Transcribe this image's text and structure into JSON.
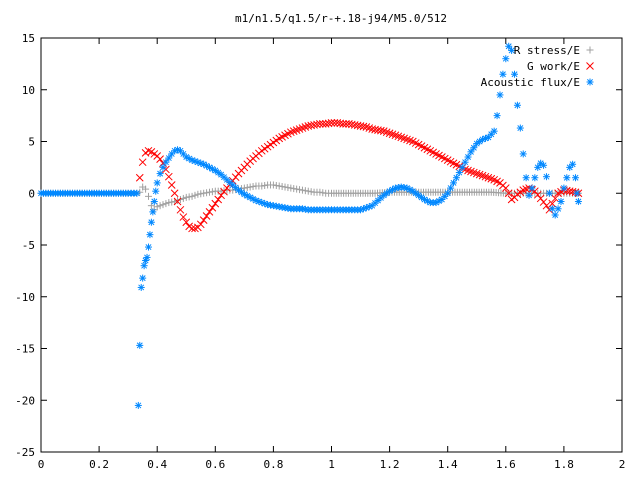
{
  "chart_data": {
    "type": "scatter",
    "title": "m1/n1.5/q1.5/r-+.18-j94/M5.0/512",
    "xlabel": "",
    "ylabel": "",
    "xlim": [
      0,
      2
    ],
    "ylim": [
      -25,
      15
    ],
    "x_ticks": [
      "0",
      "0.2",
      "0.4",
      "0.6",
      "0.8",
      "1",
      "1.2",
      "1.4",
      "1.6",
      "1.8",
      "2"
    ],
    "y_ticks": [
      "15",
      "10",
      "5",
      "0",
      "-5",
      "-10",
      "-15",
      "-20",
      "-25"
    ],
    "grid": false,
    "legend_position": "top-right",
    "series": [
      {
        "name": "R stress/E",
        "marker": "+",
        "color": "#a0a0a0",
        "points": [
          [
            0.0,
            0
          ],
          [
            0.05,
            0
          ],
          [
            0.1,
            0
          ],
          [
            0.15,
            0
          ],
          [
            0.2,
            0
          ],
          [
            0.25,
            0
          ],
          [
            0.3,
            0
          ],
          [
            0.33,
            0
          ],
          [
            0.34,
            0.1
          ],
          [
            0.35,
            0.6
          ],
          [
            0.36,
            0.4
          ],
          [
            0.37,
            -0.3
          ],
          [
            0.38,
            -1.2
          ],
          [
            0.39,
            -1.6
          ],
          [
            0.4,
            -1.3
          ],
          [
            0.42,
            -1.1
          ],
          [
            0.44,
            -0.9
          ],
          [
            0.46,
            -0.8
          ],
          [
            0.48,
            -0.6
          ],
          [
            0.5,
            -0.4
          ],
          [
            0.52,
            -0.3
          ],
          [
            0.54,
            -0.1
          ],
          [
            0.56,
            0.0
          ],
          [
            0.58,
            0.1
          ],
          [
            0.6,
            0.2
          ],
          [
            0.62,
            0.2
          ],
          [
            0.64,
            0.3
          ],
          [
            0.66,
            0.3
          ],
          [
            0.68,
            0.4
          ],
          [
            0.7,
            0.5
          ],
          [
            0.72,
            0.6
          ],
          [
            0.74,
            0.7
          ],
          [
            0.76,
            0.7
          ],
          [
            0.78,
            0.8
          ],
          [
            0.8,
            0.8
          ],
          [
            0.82,
            0.7
          ],
          [
            0.84,
            0.6
          ],
          [
            0.86,
            0.5
          ],
          [
            0.88,
            0.4
          ],
          [
            0.9,
            0.3
          ],
          [
            0.92,
            0.2
          ],
          [
            0.94,
            0.1
          ],
          [
            0.96,
            0.1
          ],
          [
            0.98,
            0.0
          ],
          [
            1.0,
            0.0
          ],
          [
            1.05,
            0.0
          ],
          [
            1.1,
            0.0
          ],
          [
            1.15,
            0.0
          ],
          [
            1.2,
            0.1
          ],
          [
            1.25,
            0.1
          ],
          [
            1.3,
            0.1
          ],
          [
            1.35,
            0.1
          ],
          [
            1.4,
            0.1
          ],
          [
            1.45,
            0.1
          ],
          [
            1.5,
            0.1
          ],
          [
            1.55,
            0.1
          ],
          [
            1.6,
            0.0
          ],
          [
            1.62,
            0.0
          ],
          [
            1.64,
            0.0
          ],
          [
            1.66,
            0.0
          ],
          [
            1.68,
            0.0
          ],
          [
            1.7,
            0.0
          ],
          [
            1.72,
            0.0
          ],
          [
            1.74,
            0.0
          ],
          [
            1.76,
            0.0
          ],
          [
            1.78,
            0.0
          ],
          [
            1.8,
            0.0
          ],
          [
            1.82,
            0.0
          ],
          [
            1.84,
            0.0
          ],
          [
            1.85,
            0.0
          ]
        ]
      },
      {
        "name": "G work/E",
        "marker": "x",
        "color": "#ff0000",
        "points": [
          [
            0.34,
            1.5
          ],
          [
            0.35,
            3.0
          ],
          [
            0.36,
            3.9
          ],
          [
            0.37,
            4.1
          ],
          [
            0.38,
            4.0
          ],
          [
            0.39,
            3.8
          ],
          [
            0.4,
            3.6
          ],
          [
            0.41,
            3.3
          ],
          [
            0.42,
            2.9
          ],
          [
            0.43,
            2.3
          ],
          [
            0.44,
            1.6
          ],
          [
            0.45,
            0.8
          ],
          [
            0.46,
            0.0
          ],
          [
            0.47,
            -0.8
          ],
          [
            0.48,
            -1.6
          ],
          [
            0.49,
            -2.3
          ],
          [
            0.5,
            -2.8
          ],
          [
            0.51,
            -3.2
          ],
          [
            0.52,
            -3.4
          ],
          [
            0.53,
            -3.4
          ],
          [
            0.54,
            -3.3
          ],
          [
            0.55,
            -3.0
          ],
          [
            0.56,
            -2.6
          ],
          [
            0.58,
            -1.8
          ],
          [
            0.6,
            -1.0
          ],
          [
            0.62,
            -0.2
          ],
          [
            0.64,
            0.5
          ],
          [
            0.66,
            1.2
          ],
          [
            0.68,
            1.9
          ],
          [
            0.7,
            2.5
          ],
          [
            0.72,
            3.1
          ],
          [
            0.74,
            3.6
          ],
          [
            0.76,
            4.1
          ],
          [
            0.78,
            4.5
          ],
          [
            0.8,
            4.9
          ],
          [
            0.82,
            5.3
          ],
          [
            0.84,
            5.6
          ],
          [
            0.86,
            5.9
          ],
          [
            0.88,
            6.1
          ],
          [
            0.9,
            6.3
          ],
          [
            0.92,
            6.5
          ],
          [
            0.94,
            6.6
          ],
          [
            0.96,
            6.7
          ],
          [
            0.98,
            6.7
          ],
          [
            1.0,
            6.8
          ],
          [
            1.02,
            6.8
          ],
          [
            1.04,
            6.7
          ],
          [
            1.06,
            6.7
          ],
          [
            1.08,
            6.6
          ],
          [
            1.1,
            6.5
          ],
          [
            1.12,
            6.4
          ],
          [
            1.14,
            6.2
          ],
          [
            1.16,
            6.1
          ],
          [
            1.18,
            6.0
          ],
          [
            1.2,
            5.8
          ],
          [
            1.22,
            5.6
          ],
          [
            1.24,
            5.4
          ],
          [
            1.26,
            5.2
          ],
          [
            1.28,
            5.0
          ],
          [
            1.3,
            4.7
          ],
          [
            1.32,
            4.4
          ],
          [
            1.34,
            4.1
          ],
          [
            1.36,
            3.8
          ],
          [
            1.38,
            3.5
          ],
          [
            1.4,
            3.2
          ],
          [
            1.42,
            2.9
          ],
          [
            1.44,
            2.6
          ],
          [
            1.46,
            2.3
          ],
          [
            1.48,
            2.1
          ],
          [
            1.5,
            1.9
          ],
          [
            1.52,
            1.7
          ],
          [
            1.54,
            1.5
          ],
          [
            1.56,
            1.3
          ],
          [
            1.58,
            1.0
          ],
          [
            1.6,
            0.5
          ],
          [
            1.61,
            0.0
          ],
          [
            1.62,
            -0.6
          ],
          [
            1.63,
            -0.4
          ],
          [
            1.64,
            -0.1
          ],
          [
            1.66,
            0.3
          ],
          [
            1.68,
            0.5
          ],
          [
            1.7,
            0.2
          ],
          [
            1.72,
            -0.5
          ],
          [
            1.74,
            -1.2
          ],
          [
            1.75,
            -1.6
          ],
          [
            1.76,
            -1.0
          ],
          [
            1.78,
            0.0
          ],
          [
            1.8,
            0.3
          ],
          [
            1.82,
            0.2
          ],
          [
            1.84,
            0.1
          ],
          [
            1.85,
            0.0
          ]
        ]
      },
      {
        "name": "Acoustic flux/E",
        "marker": "*",
        "color": "#0088ff",
        "points": [
          [
            0.0,
            0
          ],
          [
            0.05,
            0
          ],
          [
            0.1,
            0
          ],
          [
            0.15,
            0
          ],
          [
            0.2,
            0
          ],
          [
            0.25,
            0
          ],
          [
            0.3,
            0
          ],
          [
            0.33,
            0
          ],
          [
            0.335,
            -20.5
          ],
          [
            0.34,
            -14.7
          ],
          [
            0.345,
            -9.1
          ],
          [
            0.35,
            -8.2
          ],
          [
            0.355,
            -7.0
          ],
          [
            0.36,
            -6.5
          ],
          [
            0.365,
            -6.2
          ],
          [
            0.37,
            -5.2
          ],
          [
            0.375,
            -4.0
          ],
          [
            0.38,
            -2.8
          ],
          [
            0.385,
            -1.8
          ],
          [
            0.39,
            -0.8
          ],
          [
            0.395,
            0.2
          ],
          [
            0.4,
            1.0
          ],
          [
            0.41,
            1.9
          ],
          [
            0.42,
            2.5
          ],
          [
            0.43,
            3.0
          ],
          [
            0.44,
            3.4
          ],
          [
            0.45,
            3.8
          ],
          [
            0.46,
            4.1
          ],
          [
            0.47,
            4.2
          ],
          [
            0.48,
            4.1
          ],
          [
            0.49,
            3.8
          ],
          [
            0.5,
            3.5
          ],
          [
            0.52,
            3.2
          ],
          [
            0.54,
            3.0
          ],
          [
            0.56,
            2.8
          ],
          [
            0.58,
            2.5
          ],
          [
            0.6,
            2.2
          ],
          [
            0.62,
            1.8
          ],
          [
            0.64,
            1.3
          ],
          [
            0.66,
            0.8
          ],
          [
            0.68,
            0.3
          ],
          [
            0.7,
            -0.1
          ],
          [
            0.72,
            -0.4
          ],
          [
            0.74,
            -0.7
          ],
          [
            0.76,
            -0.9
          ],
          [
            0.78,
            -1.1
          ],
          [
            0.8,
            -1.2
          ],
          [
            0.82,
            -1.3
          ],
          [
            0.84,
            -1.4
          ],
          [
            0.86,
            -1.5
          ],
          [
            0.88,
            -1.5
          ],
          [
            0.9,
            -1.5
          ],
          [
            0.92,
            -1.6
          ],
          [
            0.94,
            -1.6
          ],
          [
            0.96,
            -1.6
          ],
          [
            0.98,
            -1.6
          ],
          [
            1.0,
            -1.6
          ],
          [
            1.02,
            -1.6
          ],
          [
            1.04,
            -1.6
          ],
          [
            1.06,
            -1.6
          ],
          [
            1.08,
            -1.6
          ],
          [
            1.1,
            -1.6
          ],
          [
            1.12,
            -1.4
          ],
          [
            1.14,
            -1.2
          ],
          [
            1.16,
            -0.7
          ],
          [
            1.18,
            -0.2
          ],
          [
            1.2,
            0.2
          ],
          [
            1.22,
            0.5
          ],
          [
            1.24,
            0.6
          ],
          [
            1.26,
            0.5
          ],
          [
            1.28,
            0.2
          ],
          [
            1.3,
            -0.2
          ],
          [
            1.32,
            -0.6
          ],
          [
            1.34,
            -0.9
          ],
          [
            1.36,
            -0.9
          ],
          [
            1.38,
            -0.6
          ],
          [
            1.4,
            0.0
          ],
          [
            1.42,
            1.0
          ],
          [
            1.44,
            2.0
          ],
          [
            1.46,
            3.0
          ],
          [
            1.48,
            4.0
          ],
          [
            1.5,
            4.8
          ],
          [
            1.52,
            5.2
          ],
          [
            1.54,
            5.4
          ],
          [
            1.56,
            6.0
          ],
          [
            1.57,
            7.5
          ],
          [
            1.58,
            9.5
          ],
          [
            1.59,
            11.5
          ],
          [
            1.6,
            13.0
          ],
          [
            1.61,
            14.2
          ],
          [
            1.62,
            13.8
          ],
          [
            1.63,
            11.5
          ],
          [
            1.64,
            8.5
          ],
          [
            1.65,
            6.3
          ],
          [
            1.66,
            3.8
          ],
          [
            1.67,
            1.5
          ],
          [
            1.68,
            -0.2
          ],
          [
            1.69,
            0.5
          ],
          [
            1.7,
            1.5
          ],
          [
            1.71,
            2.5
          ],
          [
            1.72,
            2.9
          ],
          [
            1.73,
            2.7
          ],
          [
            1.74,
            1.6
          ],
          [
            1.75,
            0.0
          ],
          [
            1.76,
            -1.5
          ],
          [
            1.77,
            -2.1
          ],
          [
            1.78,
            -1.5
          ],
          [
            1.79,
            -0.8
          ],
          [
            1.8,
            0.5
          ],
          [
            1.81,
            1.5
          ],
          [
            1.82,
            2.5
          ],
          [
            1.83,
            2.8
          ],
          [
            1.84,
            1.5
          ],
          [
            1.845,
            0.0
          ],
          [
            1.85,
            -0.8
          ]
        ]
      }
    ]
  }
}
